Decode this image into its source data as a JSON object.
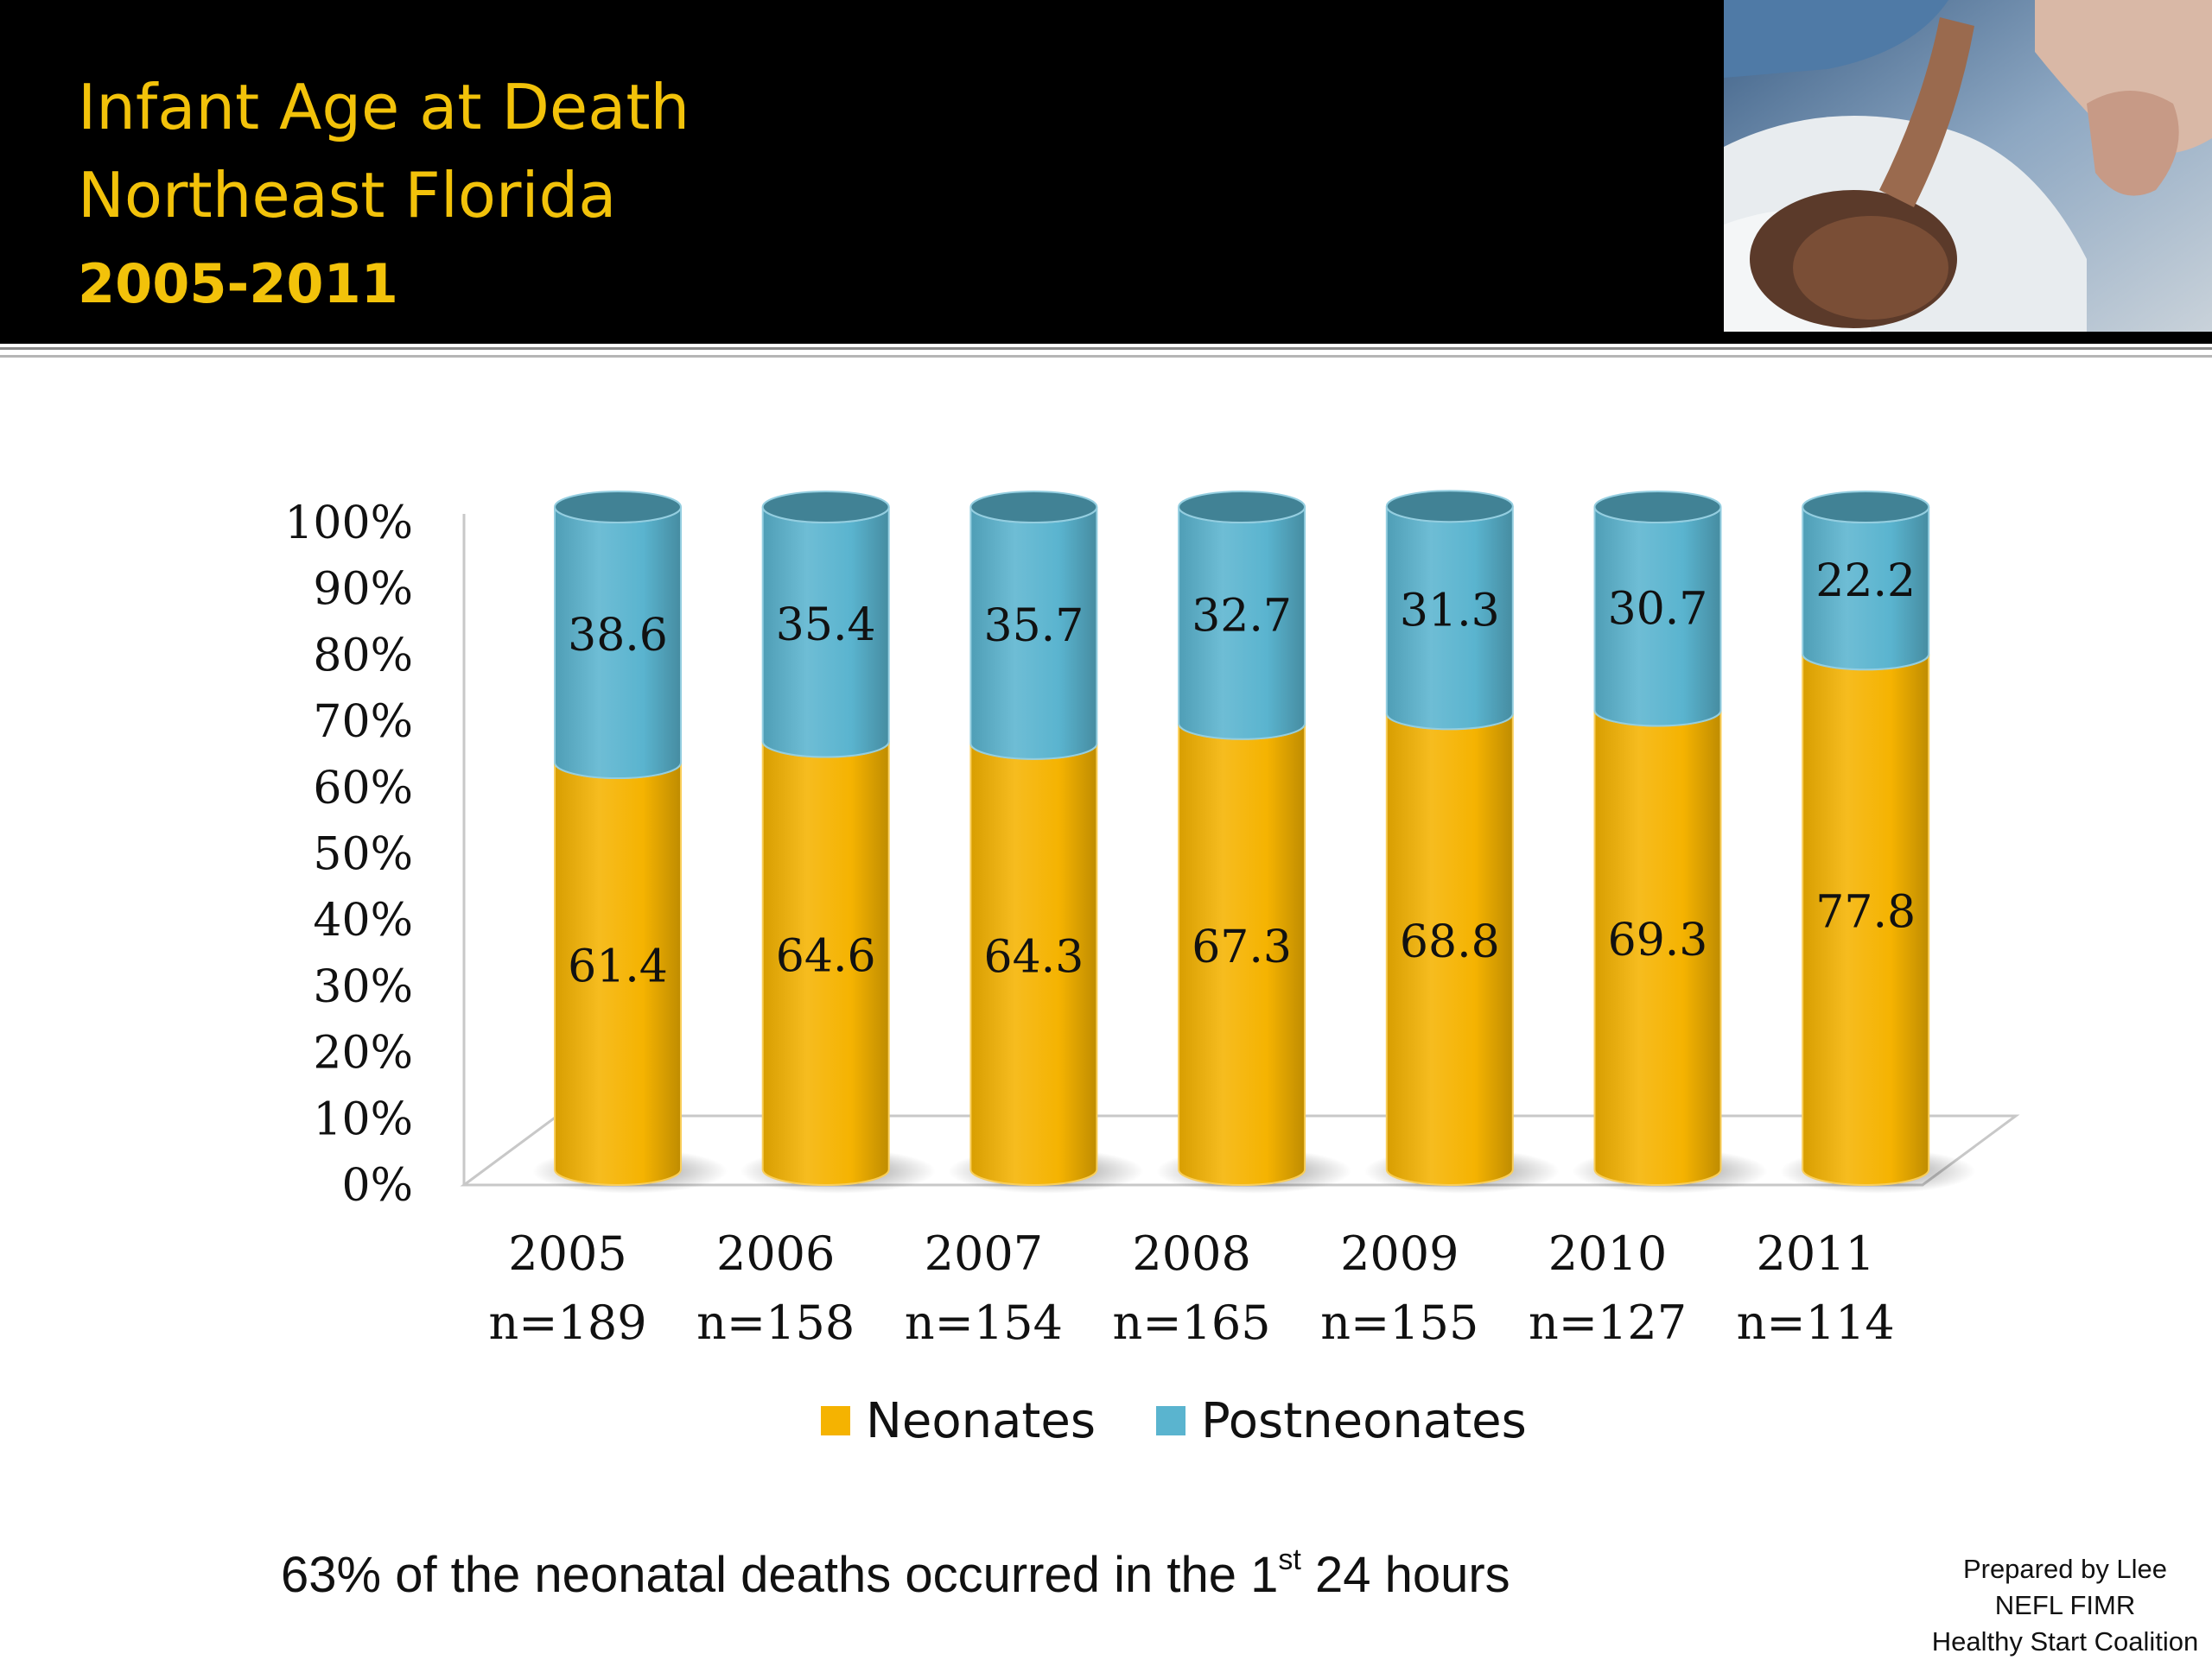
{
  "slide": {
    "title_lines": [
      "Infant Age at Death",
      "Northeast Florida",
      "2005-2011"
    ],
    "footnote": {
      "before": "63% of  the neonatal deaths occurred in the 1",
      "superscript": "st",
      "after": " 24 hours"
    },
    "credit_lines": [
      "Prepared by Llee",
      "NEFL FIMR",
      "Healthy Start Coalition"
    ],
    "photo_icon": "infant-photo"
  },
  "colors": {
    "neonates": "#f5b301",
    "postneonates": "#5ab4cf",
    "title": "#f2c20a",
    "header_bg": "#000000"
  },
  "chart_data": {
    "type": "bar",
    "stacked": true,
    "percent_stacked": true,
    "style": "3d-cylinder",
    "categories": [
      "2005",
      "2006",
      "2007",
      "2008",
      "2009",
      "2010",
      "2011"
    ],
    "category_sublabels": [
      "n=189",
      "n=158",
      "n=154",
      "n=165",
      "n=155",
      "n=127",
      "n=114"
    ],
    "series": [
      {
        "name": "Neonates",
        "values": [
          61.4,
          64.6,
          64.3,
          67.3,
          68.8,
          69.3,
          77.8
        ]
      },
      {
        "name": "Postneonates",
        "values": [
          38.6,
          35.4,
          35.7,
          32.7,
          31.3,
          30.7,
          22.2
        ]
      }
    ],
    "ylim": [
      0,
      100
    ],
    "yticks": [
      "0%",
      "10%",
      "20%",
      "30%",
      "40%",
      "50%",
      "60%",
      "70%",
      "80%",
      "90%",
      "100%"
    ],
    "xlabel": "",
    "ylabel": "",
    "legend_position": "bottom",
    "grid": false
  }
}
